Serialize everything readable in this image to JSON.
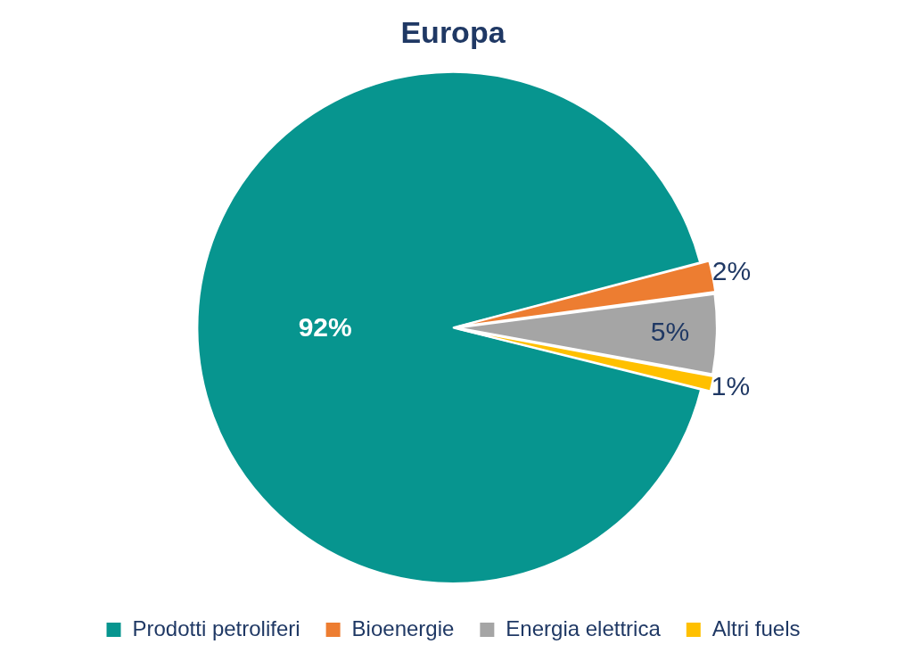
{
  "chart_data": {
    "type": "pie",
    "title": "Europa",
    "categories": [
      "Prodotti petroliferi",
      "Bioenergie",
      "Energia elettrica",
      "Altri fuels"
    ],
    "values": [
      92,
      2,
      5,
      1
    ],
    "colors": [
      "#07958f",
      "#ed7d31",
      "#a5a5a5",
      "#ffc000"
    ],
    "value_labels": [
      "92%",
      "2%",
      "5%",
      "1%"
    ],
    "legend": "bottom"
  }
}
